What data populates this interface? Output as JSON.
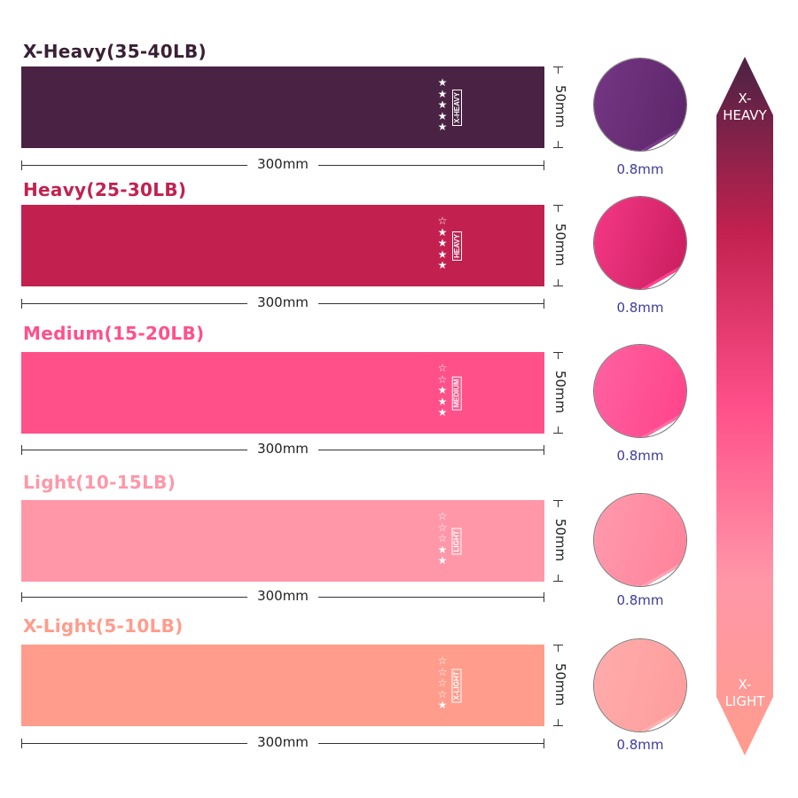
{
  "bands": [
    {
      "title": "X-Heavy(35-40LB)",
      "tag": "X-HEAVY",
      "stars_filled": 5,
      "length": "300mm",
      "width": "50mm",
      "thickness": "0.8mm",
      "color": "#4a2344",
      "title_color": "#3a2035",
      "light": "#7a3a8a",
      "dark": "#5a2466"
    },
    {
      "title": "Heavy(25-30LB)",
      "tag": "HEAVY",
      "stars_filled": 4,
      "length": "300mm",
      "width": "50mm",
      "thickness": "0.8mm",
      "color": "#c2214f",
      "title_color": "#c2214f",
      "light": "#ff3f8f",
      "dark": "#c41a5a"
    },
    {
      "title": "Medium(15-20LB)",
      "tag": "MEDIUM",
      "stars_filled": 3,
      "length": "300mm",
      "width": "50mm",
      "thickness": "0.8mm",
      "color": "#ff508a",
      "title_color": "#ff508a",
      "light": "#ff6aa6",
      "dark": "#ff3f88"
    },
    {
      "title": "Light(10-15LB)",
      "tag": "LIGHT",
      "stars_filled": 2,
      "length": "300mm",
      "width": "50mm",
      "thickness": "0.8mm",
      "color": "#ff97a8",
      "title_color": "#ff97a8",
      "light": "#ffa0b2",
      "dark": "#ff7f98"
    },
    {
      "title": "X-Light(5-10LB)",
      "tag": "X-LIGHT",
      "stars_filled": 1,
      "length": "300mm",
      "width": "50mm",
      "thickness": "0.8mm",
      "color": "#ff9c8c",
      "title_color": "#ff9c8c",
      "light": "#ffb0b0",
      "dark": "#ff9a9a"
    }
  ],
  "scale": {
    "top_label": "X-\nHEAVY",
    "top_line1": "X-",
    "top_line2": "HEAVY",
    "bottom_line1": "X-",
    "bottom_line2": "LIGHT",
    "gradient": [
      "#4a2344",
      "#c2214f",
      "#ff4f8a",
      "#ff97a8",
      "#ff9c8c"
    ]
  }
}
